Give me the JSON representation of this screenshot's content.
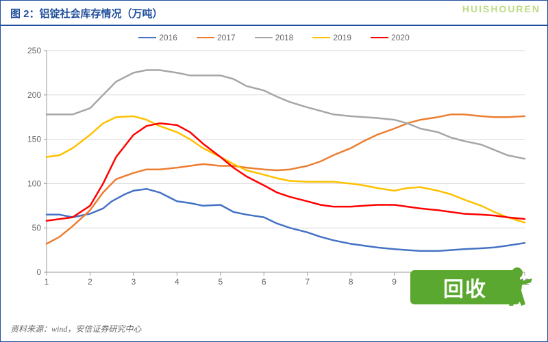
{
  "title": "图 2：铝锭社会库存情况（万吨）",
  "source": "资料来源：wind，安信证券研究中心",
  "watermark_top": "HUISHOUREN",
  "watermark_box_text": "回收",
  "chart": {
    "type": "line",
    "background_color": "#ffffff",
    "grid_color": "#d9d9d9",
    "axis_color": "#999999",
    "xlim": [
      1,
      12
    ],
    "ylim": [
      0,
      250
    ],
    "ytick_step": 50,
    "x_ticks": [
      1,
      2,
      3,
      4,
      5,
      6,
      7,
      8,
      9,
      10,
      11,
      12
    ],
    "y_ticks": [
      0,
      50,
      100,
      150,
      200,
      250
    ],
    "label_fontsize": 12,
    "line_width": 2.5,
    "series": [
      {
        "name": "2016",
        "color": "#4472c4",
        "x": [
          1,
          1.3,
          1.6,
          2,
          2.3,
          2.5,
          2.8,
          3,
          3.3,
          3.6,
          4,
          4.3,
          4.6,
          5,
          5.3,
          5.6,
          6,
          6.3,
          6.6,
          7,
          7.3,
          7.6,
          8,
          8.3,
          8.6,
          9,
          9.3,
          9.6,
          10,
          10.3,
          10.6,
          11,
          11.3,
          11.6,
          12
        ],
        "y": [
          65,
          65,
          62,
          66,
          72,
          80,
          88,
          92,
          94,
          90,
          80,
          78,
          75,
          76,
          68,
          65,
          62,
          55,
          50,
          45,
          40,
          36,
          32,
          30,
          28,
          26,
          25,
          24,
          24,
          25,
          26,
          27,
          28,
          30,
          33
        ]
      },
      {
        "name": "2017",
        "color": "#ed7d31",
        "x": [
          1,
          1.3,
          1.6,
          2,
          2.3,
          2.6,
          3,
          3.3,
          3.6,
          4,
          4.3,
          4.6,
          5,
          5.3,
          5.6,
          6,
          6.3,
          6.6,
          7,
          7.3,
          7.6,
          8,
          8.3,
          8.6,
          9,
          9.3,
          9.6,
          10,
          10.3,
          10.6,
          11,
          11.3,
          11.6,
          12
        ],
        "y": [
          32,
          40,
          52,
          70,
          90,
          105,
          112,
          116,
          116,
          118,
          120,
          122,
          120,
          120,
          118,
          116,
          115,
          116,
          120,
          125,
          132,
          140,
          148,
          155,
          162,
          168,
          172,
          175,
          178,
          178,
          176,
          175,
          175,
          176
        ]
      },
      {
        "name": "2018",
        "color": "#a6a6a6",
        "x": [
          1,
          1.3,
          1.6,
          2,
          2.3,
          2.6,
          3,
          3.3,
          3.6,
          4,
          4.3,
          4.6,
          5,
          5.3,
          5.6,
          6,
          6.3,
          6.6,
          7,
          7.3,
          7.6,
          8,
          8.3,
          8.6,
          9,
          9.3,
          9.6,
          10,
          10.3,
          10.6,
          11,
          11.3,
          11.6,
          12
        ],
        "y": [
          178,
          178,
          178,
          185,
          200,
          215,
          225,
          228,
          228,
          225,
          222,
          222,
          222,
          218,
          210,
          205,
          198,
          192,
          186,
          182,
          178,
          176,
          175,
          174,
          172,
          168,
          162,
          158,
          152,
          148,
          144,
          138,
          132,
          128
        ]
      },
      {
        "name": "2019",
        "color": "#ffc000",
        "x": [
          1,
          1.3,
          1.6,
          2,
          2.3,
          2.6,
          3,
          3.3,
          3.6,
          4,
          4.3,
          4.6,
          5,
          5.3,
          5.6,
          6,
          6.3,
          6.6,
          7,
          7.3,
          7.6,
          8,
          8.3,
          8.6,
          9,
          9.3,
          9.6,
          10,
          10.3,
          10.6,
          11,
          11.3,
          11.6,
          12
        ],
        "y": [
          130,
          132,
          140,
          155,
          168,
          175,
          176,
          172,
          165,
          158,
          150,
          140,
          130,
          122,
          115,
          110,
          106,
          103,
          102,
          102,
          102,
          100,
          98,
          95,
          92,
          95,
          96,
          92,
          88,
          82,
          75,
          68,
          62,
          56
        ]
      },
      {
        "name": "2020",
        "color": "#ff0000",
        "x": [
          1,
          1.3,
          1.6,
          2,
          2.3,
          2.6,
          3,
          3.3,
          3.6,
          4,
          4.3,
          4.6,
          5,
          5.3,
          5.6,
          6,
          6.3,
          6.6,
          7,
          7.3,
          7.6,
          8,
          8.3,
          8.6,
          9,
          9.3,
          9.6,
          10,
          10.3,
          10.6,
          11,
          11.3,
          11.6,
          12
        ],
        "y": [
          58,
          60,
          62,
          75,
          100,
          130,
          155,
          165,
          168,
          166,
          158,
          145,
          130,
          118,
          108,
          98,
          90,
          85,
          80,
          76,
          74,
          74,
          75,
          76,
          76,
          74,
          72,
          70,
          68,
          66,
          65,
          64,
          62,
          60
        ]
      }
    ]
  },
  "colors": {
    "frame": "#1f4e9c",
    "watermark_top": "#b7d97a",
    "watermark_box": "#5aa82f"
  }
}
